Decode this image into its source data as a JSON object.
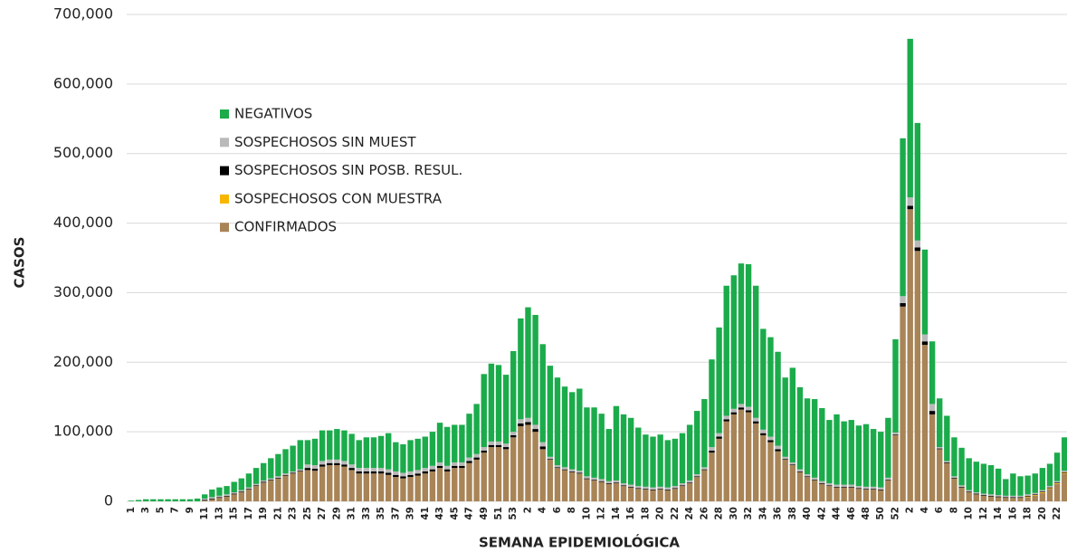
{
  "chart_data": {
    "type": "stacked-bar",
    "x_label": "SEMANA EPIDEMIOLÓGICA",
    "y_label": "CASOS",
    "categories": [
      "1",
      null,
      "3",
      null,
      "5",
      null,
      "7",
      null,
      "9",
      null,
      "11",
      null,
      "13",
      null,
      "15",
      null,
      "17",
      null,
      "19",
      null,
      "21",
      null,
      "23",
      null,
      "25",
      null,
      "27",
      null,
      "29",
      null,
      "31",
      null,
      "33",
      null,
      "35",
      null,
      "37",
      null,
      "39",
      null,
      "41",
      null,
      "43",
      null,
      "45",
      null,
      "47",
      null,
      "49",
      null,
      "51",
      null,
      "53",
      null,
      "2",
      null,
      "4",
      null,
      "6",
      null,
      "8",
      null,
      "10",
      null,
      "12",
      null,
      "14",
      null,
      "16",
      null,
      "18",
      null,
      "20",
      null,
      "22",
      null,
      "24",
      null,
      "26",
      null,
      "28",
      null,
      "30",
      null,
      "32",
      null,
      "34",
      null,
      "36",
      null,
      "38",
      null,
      "40",
      null,
      "42",
      null,
      "44",
      null,
      "46",
      null,
      "48",
      null,
      "50",
      null,
      "52",
      null,
      "2",
      null,
      "4",
      null,
      "6",
      null,
      "8",
      null,
      "10",
      null,
      "12",
      null,
      "14",
      null,
      "16",
      null,
      "18",
      null,
      "20",
      null,
      "22",
      null
    ],
    "series": [
      {
        "name": "CONFIRMADOS",
        "color": "#a88457",
        "values": [
          0,
          0,
          0,
          0,
          0,
          0,
          0,
          0,
          0,
          0,
          1000,
          3000,
          5000,
          7000,
          10000,
          13000,
          17000,
          22000,
          27000,
          30000,
          33000,
          37000,
          40000,
          43000,
          45000,
          44000,
          50000,
          52000,
          52000,
          50000,
          45000,
          40000,
          40000,
          40000,
          40000,
          38000,
          35000,
          33000,
          35000,
          37000,
          40000,
          43000,
          48000,
          43000,
          48000,
          48000,
          55000,
          60000,
          70000,
          78000,
          78000,
          75000,
          92000,
          108000,
          110000,
          100000,
          75000,
          60000,
          48000,
          45000,
          42000,
          40000,
          32000,
          30000,
          28000,
          25000,
          26000,
          22000,
          20000,
          18000,
          17000,
          16000,
          17000,
          16000,
          18000,
          22000,
          26000,
          35000,
          45000,
          70000,
          90000,
          115000,
          125000,
          132000,
          128000,
          112000,
          95000,
          85000,
          72000,
          60000,
          52000,
          42000,
          35000,
          30000,
          25000,
          22000,
          20000,
          20000,
          20000,
          18000,
          17000,
          17000,
          16000,
          30000,
          95000,
          280000,
          420000,
          360000,
          225000,
          125000,
          75000,
          55000,
          33000,
          20000,
          13000,
          10000,
          8000,
          7000,
          6000,
          5000,
          5000,
          5000,
          6000,
          8000,
          12000,
          18000,
          25000,
          40000
        ]
      },
      {
        "name": "SOSPECHOSOS CON MUESTRA",
        "color": "#f7b500",
        "values": [
          0,
          0,
          0,
          0,
          0,
          0,
          0,
          0,
          0,
          0,
          0,
          0,
          0,
          0,
          0,
          0,
          0,
          0,
          0,
          0,
          0,
          0,
          0,
          0,
          0,
          0,
          0,
          0,
          0,
          0,
          0,
          0,
          0,
          0,
          0,
          0,
          0,
          0,
          0,
          0,
          0,
          0,
          0,
          0,
          0,
          0,
          0,
          0,
          0,
          0,
          0,
          0,
          0,
          0,
          0,
          0,
          0,
          0,
          0,
          0,
          0,
          0,
          0,
          0,
          0,
          0,
          0,
          0,
          0,
          0,
          0,
          0,
          0,
          0,
          0,
          0,
          0,
          0,
          0,
          0,
          0,
          0,
          0,
          0,
          0,
          0,
          0,
          0,
          0,
          0,
          0,
          0,
          0,
          0,
          0,
          0,
          0,
          0,
          0,
          0,
          0,
          0,
          0,
          0,
          0,
          0,
          0,
          0,
          0,
          0,
          0,
          0,
          0,
          0,
          0,
          0,
          0,
          0,
          0,
          0,
          0,
          0,
          1000,
          1000,
          1000,
          1000,
          1000,
          1000
        ]
      },
      {
        "name": "SOSPECHOSOS SIN POSB. RESUL.",
        "color": "#000000",
        "values": [
          0,
          0,
          0,
          0,
          0,
          0,
          0,
          0,
          0,
          0,
          1000,
          1000,
          1000,
          1000,
          1000,
          1000,
          1000,
          1000,
          1000,
          1000,
          1000,
          1000,
          1000,
          1000,
          3000,
          3000,
          3000,
          3000,
          3000,
          3000,
          3000,
          3000,
          3000,
          3000,
          3000,
          3000,
          3000,
          3000,
          3000,
          3000,
          3000,
          3000,
          3000,
          3000,
          3000,
          3000,
          3000,
          3000,
          3000,
          3000,
          3000,
          3000,
          3000,
          4000,
          4000,
          4000,
          4000,
          1000,
          1000,
          1000,
          1000,
          1000,
          1000,
          1000,
          1000,
          1000,
          1000,
          1000,
          1000,
          1000,
          1000,
          1000,
          1000,
          1000,
          1000,
          1000,
          1000,
          1000,
          1000,
          3000,
          3000,
          3000,
          3000,
          3000,
          3000,
          3000,
          3000,
          3000,
          3000,
          1000,
          1000,
          1000,
          1000,
          1000,
          1000,
          1000,
          1000,
          1000,
          1000,
          1000,
          1000,
          1000,
          1000,
          1000,
          1000,
          5000,
          5000,
          5000,
          5000,
          5000,
          1000,
          1000,
          1000,
          1000,
          1000,
          1000,
          1000,
          1000,
          1000,
          1000,
          1000,
          1000,
          1000,
          1000,
          1000,
          1000,
          1000,
          1000
        ]
      },
      {
        "name": "SOSPECHOSOS SIN MUEST",
        "color": "#b9b9b9",
        "values": [
          0,
          0,
          0,
          0,
          0,
          0,
          0,
          0,
          0,
          0,
          2000,
          2000,
          2000,
          2000,
          2000,
          2000,
          2000,
          2000,
          2000,
          2000,
          2000,
          2000,
          2000,
          2000,
          5000,
          5000,
          5000,
          5000,
          5000,
          5000,
          5000,
          5000,
          5000,
          5000,
          5000,
          5000,
          5000,
          5000,
          5000,
          5000,
          5000,
          5000,
          5000,
          5000,
          5000,
          5000,
          5000,
          5000,
          5000,
          5000,
          5000,
          5000,
          5000,
          6000,
          6000,
          6000,
          6000,
          3000,
          3000,
          3000,
          3000,
          3000,
          3000,
          3000,
          3000,
          3000,
          3000,
          3000,
          3000,
          3000,
          3000,
          3000,
          3000,
          3000,
          3000,
          3000,
          3000,
          3000,
          3000,
          5000,
          5000,
          5000,
          5000,
          5000,
          5000,
          5000,
          5000,
          5000,
          5000,
          3000,
          3000,
          3000,
          3000,
          3000,
          3000,
          3000,
          3000,
          3000,
          3000,
          3000,
          3000,
          3000,
          3000,
          3000,
          3000,
          10000,
          12000,
          10000,
          10000,
          10000,
          2000,
          2000,
          2000,
          2000,
          2000,
          2000,
          2000,
          2000,
          2000,
          2000,
          2000,
          2000,
          2000,
          2000,
          2000,
          2000,
          2000,
          2000
        ]
      },
      {
        "name": "NEGATIVOS",
        "color": "#1bab4b",
        "values": [
          1000,
          2000,
          3000,
          3000,
          3000,
          3000,
          3000,
          3000,
          3000,
          4000,
          6000,
          11000,
          12000,
          12000,
          15000,
          17000,
          20000,
          23000,
          25000,
          29000,
          32000,
          35000,
          37000,
          42000,
          35000,
          38000,
          44000,
          42000,
          44000,
          44000,
          44000,
          40000,
          44000,
          44000,
          46000,
          52000,
          42000,
          41000,
          45000,
          45000,
          45000,
          49000,
          57000,
          56000,
          54000,
          54000,
          63000,
          72000,
          105000,
          112000,
          110000,
          99000,
          116000,
          145000,
          159000,
          158000,
          141000,
          131000,
          126000,
          116000,
          111000,
          118000,
          99000,
          101000,
          94000,
          75000,
          107000,
          99000,
          96000,
          84000,
          75000,
          73000,
          75000,
          68000,
          68000,
          72000,
          80000,
          91000,
          98000,
          126000,
          152000,
          187000,
          192000,
          202000,
          205000,
          190000,
          145000,
          143000,
          135000,
          114000,
          136000,
          118000,
          109000,
          113000,
          105000,
          91000,
          101000,
          91000,
          93000,
          87000,
          90000,
          83000,
          80000,
          86000,
          134000,
          227000,
          228000,
          169000,
          122000,
          90000,
          70000,
          65000,
          56000,
          54000,
          46000,
          44000,
          43000,
          42000,
          38000,
          24000,
          32000,
          28000,
          27000,
          28000,
          32000,
          32000,
          41000,
          48000
        ]
      }
    ],
    "ylim": [
      0,
      700000
    ],
    "yticks": [
      0,
      {
        "value": 100000,
        "label": "100,000"
      },
      {
        "value": 200000,
        "label": "200,000"
      },
      {
        "value": 300000,
        "label": "300,000"
      },
      {
        "value": 400000,
        "label": "400,000"
      },
      {
        "value": 500000,
        "label": "500,000"
      },
      {
        "value": 600000,
        "label": "600,000"
      },
      {
        "value": 700000,
        "label": "700,000"
      }
    ],
    "grid": true
  }
}
